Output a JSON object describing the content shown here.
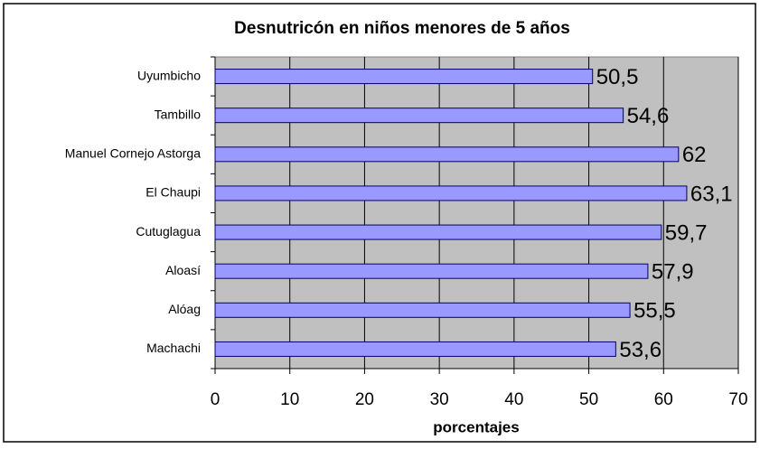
{
  "chart_data": {
    "type": "bar",
    "orientation": "horizontal",
    "title": "Desnutricón en niños menores de 5 años",
    "x_label": "porcentajes",
    "categories": [
      "Uyumbicho",
      "Tambillo",
      "Manuel Cornejo Astorga",
      "El Chaupi",
      "Cutuglagua",
      "Aloasí",
      "Alóag",
      "Machachi"
    ],
    "values": [
      50.5,
      54.6,
      62,
      63.1,
      59.7,
      57.9,
      55.5,
      53.6
    ],
    "value_labels": [
      "50,5",
      "54,6",
      "62",
      "63,1",
      "59,7",
      "57,9",
      "55,5",
      "53,6"
    ],
    "color": "#9999ff",
    "xlim": [
      0,
      70
    ],
    "xticks": [
      0,
      10,
      20,
      30,
      40,
      50,
      60,
      70
    ],
    "grid": true
  }
}
